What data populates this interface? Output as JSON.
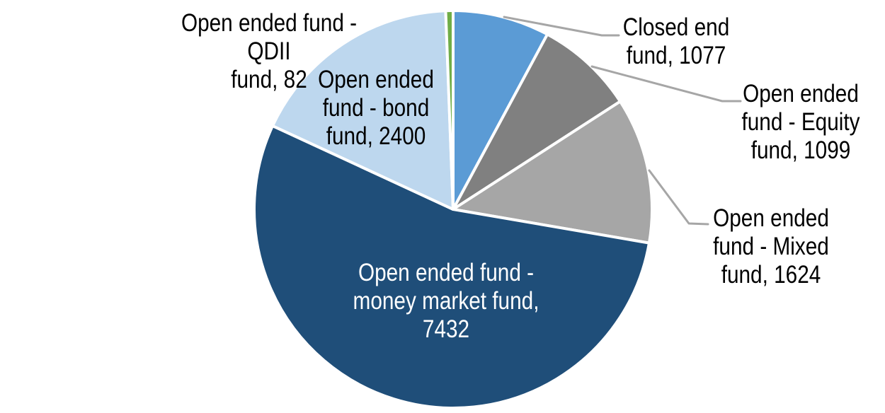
{
  "chart_data": {
    "type": "pie",
    "title": "",
    "legend": "none",
    "background_color": "#FFFFFF",
    "slice_border_color": "#FFFFFF",
    "leader_line_color": "#A6A6A6",
    "total": 13714,
    "start_angle_deg": 0,
    "direction": "clockwise",
    "slices": [
      {
        "id": "closed-end-fund",
        "category": "Closed end fund",
        "value": 1077,
        "color": "#5B9BD5",
        "label_text": "Closed end\nfund, 1077",
        "label_position": "outside-right",
        "leader_points": [
          [
            712,
            24
          ],
          [
            850,
            50
          ],
          [
            874,
            50
          ]
        ]
      },
      {
        "id": "open-ended-equity-fund",
        "category": "Open ended fund - Equity fund",
        "value": 1099,
        "color": "#808080",
        "label_text": "Open ended\nfund - Equity\nfund, 1099",
        "label_position": "outside-right",
        "leader_points": [
          [
            836,
            94
          ],
          [
            1020,
            143
          ],
          [
            1046,
            143
          ]
        ]
      },
      {
        "id": "open-ended-mixed-fund",
        "category": "Open ended fund - Mixed fund",
        "value": 1624,
        "color": "#A6A6A6",
        "label_text": "Open ended\nfund - Mixed\nfund, 1624",
        "label_position": "outside-right",
        "leader_points": [
          [
            917,
            241
          ],
          [
            973,
            316
          ],
          [
            1000,
            317
          ]
        ]
      },
      {
        "id": "open-ended-money-market-fund",
        "category": "Open ended fund - money market fund",
        "value": 7432,
        "color": "#1F4E79",
        "label_text": "Open ended fund -\nmoney market fund,\n7432",
        "label_position": "inside",
        "label_text_color": "#FFFFFF"
      },
      {
        "id": "open-ended-bond-fund",
        "category": "Open ended fund - bond fund",
        "value": 2400,
        "color": "#BDD7EE",
        "label_text": "Open ended\nfund - bond\nfund, 2400",
        "label_position": "inside"
      },
      {
        "id": "open-ended-qdii-fund",
        "category": "Open ended fund - QDII fund",
        "value": 82,
        "color": "#70AD47",
        "label_text": "Open ended fund - QDII\nfund, 82",
        "label_position": "outside-left"
      }
    ]
  }
}
